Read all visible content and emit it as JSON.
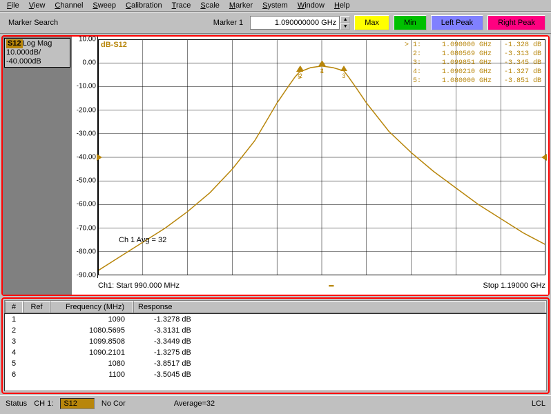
{
  "menu": [
    "File",
    "View",
    "Channel",
    "Sweep",
    "Calibration",
    "Trace",
    "Scale",
    "Marker",
    "System",
    "Window",
    "Help"
  ],
  "toolbar": {
    "search_label": "Marker Search",
    "marker_label": "Marker 1",
    "marker_value": "1.090000000 GHz",
    "max": "Max",
    "min": "Min",
    "left_peak": "Left Peak",
    "right_peak": "Right Peak"
  },
  "sidebar": {
    "tag": "S12",
    "line1": "Log Mag",
    "line2": "10.000dB/",
    "line3": "-40.000dB"
  },
  "chart": {
    "type": "line",
    "db_label": "dB-S12",
    "y_ticks": [
      "10.00",
      "0.00",
      "-10.00",
      "-20.00",
      "-30.00",
      "-40.00",
      "-50.00",
      "-60.00",
      "-70.00",
      "-80.00",
      "-90.00"
    ],
    "ylim": [
      -90,
      10
    ],
    "ref_level": -40,
    "xlim_mhz": [
      990,
      1190
    ],
    "x_start_label": "Ch1: Start  990.000 MHz",
    "x_stop_label": "Stop  1.19000 GHz",
    "avg_label": "Ch 1 Avg =",
    "avg_value": "32",
    "curve_color": "#b8860b",
    "grid_color": "#000000",
    "bg_color": "#ffffff",
    "curve_points_mhz_db": [
      [
        990,
        -88
      ],
      [
        1000,
        -82
      ],
      [
        1010,
        -76
      ],
      [
        1020,
        -70
      ],
      [
        1030,
        -63
      ],
      [
        1040,
        -55
      ],
      [
        1050,
        -45
      ],
      [
        1060,
        -33
      ],
      [
        1065,
        -25
      ],
      [
        1070,
        -17
      ],
      [
        1075,
        -10
      ],
      [
        1078,
        -6
      ],
      [
        1080,
        -3.85
      ],
      [
        1085,
        -2
      ],
      [
        1090,
        -1.33
      ],
      [
        1095,
        -2
      ],
      [
        1099.85,
        -3.34
      ],
      [
        1102,
        -6
      ],
      [
        1105,
        -10
      ],
      [
        1110,
        -17
      ],
      [
        1115,
        -23
      ],
      [
        1120,
        -29
      ],
      [
        1130,
        -38
      ],
      [
        1140,
        -46
      ],
      [
        1150,
        -53
      ],
      [
        1160,
        -60
      ],
      [
        1170,
        -66
      ],
      [
        1180,
        -72
      ],
      [
        1190,
        -77
      ]
    ],
    "markers_on_plot": [
      {
        "n": "1",
        "mhz": 1090,
        "db": -1.33
      },
      {
        "n": "2",
        "mhz": 1080.57,
        "db": -3.31
      },
      {
        "n": "3",
        "mhz": 1099.85,
        "db": -3.34
      },
      {
        "n": "4",
        "mhz": 1090.21,
        "db": -1.33
      },
      {
        "n": "5",
        "mhz": 1080,
        "db": -3.85
      }
    ],
    "readout": [
      {
        "n": "> 1:",
        "f": "1.090000 GHz",
        "v": "-1.328 dB"
      },
      {
        "n": "2:",
        "f": "1.080569 GHz",
        "v": "-3.313 dB"
      },
      {
        "n": "3:",
        "f": "1.099851 GHz",
        "v": "-3.345 dB"
      },
      {
        "n": "4:",
        "f": "1.090210 GHz",
        "v": "-1.327 dB"
      },
      {
        "n": "5:",
        "f": "1.080000 GHz",
        "v": "-3.851 dB"
      }
    ]
  },
  "table": {
    "headers": [
      "#",
      "Ref",
      "Frequency (MHz)",
      "Response"
    ],
    "rows": [
      {
        "n": "1",
        "ref": "",
        "f": "1090",
        "r": "-1.3278 dB"
      },
      {
        "n": "2",
        "ref": "",
        "f": "1080.5695",
        "r": "-3.3131 dB"
      },
      {
        "n": "3",
        "ref": "",
        "f": "1099.8508",
        "r": "-3.3449 dB"
      },
      {
        "n": "4",
        "ref": "",
        "f": "1090.2101",
        "r": "-1.3275 dB"
      },
      {
        "n": "5",
        "ref": "",
        "f": "1080",
        "r": "-3.8517 dB"
      },
      {
        "n": "6",
        "ref": "",
        "f": "1100",
        "r": "-3.5045 dB"
      }
    ]
  },
  "status": {
    "label": "Status",
    "ch": "CH 1:",
    "s": "S12",
    "cor": "No Cor",
    "avg": "Average=32",
    "lcl": "LCL"
  },
  "colors": {
    "frame_red": "#ff0000",
    "trace": "#b8860b",
    "btn_max": "#ffff00",
    "btn_min": "#00c000",
    "btn_lp": "#8080ff",
    "btn_rp": "#ff0080"
  }
}
